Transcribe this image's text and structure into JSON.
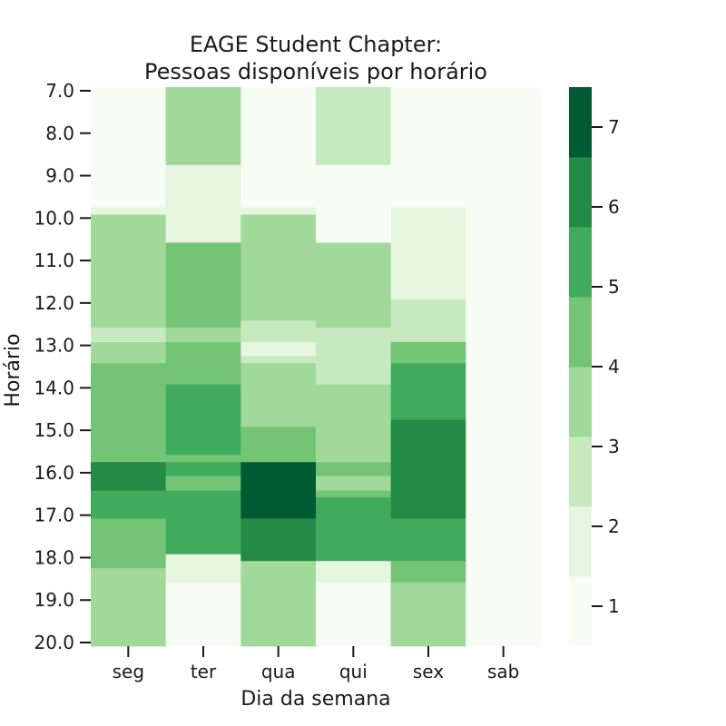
{
  "chart_data": {
    "type": "heatmap",
    "title_lines": [
      "EAGE Student Chapter:",
      "Pessoas disponíveis por horário"
    ],
    "xlabel": "Dia da semana",
    "ylabel": "Horário",
    "x_categories": [
      "seg",
      "ter",
      "qua",
      "qui",
      "sex",
      "sab"
    ],
    "y_ticks": [
      "7.0",
      "8.0",
      "9.0",
      "10.0",
      "11.0",
      "12.0",
      "13.0",
      "14.0",
      "15.0",
      "16.0",
      "17.0",
      "18.0",
      "19.0",
      "20.0"
    ],
    "y_range": [
      7.0,
      20.0
    ],
    "colormap": "Greens",
    "value_range": [
      0.5,
      7.5
    ],
    "colorbar_ticks": [
      1,
      2,
      3,
      4,
      5,
      6,
      7
    ],
    "palette": [
      "#f7fcf5",
      "#e5f5e0",
      "#c7e9c0",
      "#a1d99b",
      "#74c476",
      "#41ab5d",
      "#238b45",
      "#005a32"
    ],
    "series": [
      {
        "name": "seg",
        "blocks": [
          {
            "from": 7.0,
            "to": 9.75,
            "value": 1
          },
          {
            "from": 9.75,
            "to": 9.92,
            "value": 2
          },
          {
            "from": 9.92,
            "to": 12.58,
            "value": 4
          },
          {
            "from": 12.58,
            "to": 12.92,
            "value": 3
          },
          {
            "from": 12.92,
            "to": 13.42,
            "value": 4
          },
          {
            "from": 13.42,
            "to": 15.75,
            "value": 5
          },
          {
            "from": 15.75,
            "to": 16.42,
            "value": 7
          },
          {
            "from": 16.42,
            "to": 17.08,
            "value": 6
          },
          {
            "from": 17.08,
            "to": 18.25,
            "value": 5
          },
          {
            "from": 18.25,
            "to": 20.0,
            "value": 4
          }
        ]
      },
      {
        "name": "ter",
        "blocks": [
          {
            "from": 7.0,
            "to": 8.75,
            "value": 4
          },
          {
            "from": 8.75,
            "to": 10.58,
            "value": 2
          },
          {
            "from": 10.58,
            "to": 12.58,
            "value": 5
          },
          {
            "from": 12.58,
            "to": 12.92,
            "value": 4
          },
          {
            "from": 12.92,
            "to": 13.92,
            "value": 5
          },
          {
            "from": 13.92,
            "to": 15.58,
            "value": 6
          },
          {
            "from": 15.58,
            "to": 15.75,
            "value": 5
          },
          {
            "from": 15.75,
            "to": 16.08,
            "value": 6
          },
          {
            "from": 16.08,
            "to": 16.42,
            "value": 5
          },
          {
            "from": 16.42,
            "to": 17.92,
            "value": 6
          },
          {
            "from": 17.92,
            "to": 18.58,
            "value": 2
          },
          {
            "from": 18.58,
            "to": 20.0,
            "value": 1
          }
        ]
      },
      {
        "name": "qua",
        "blocks": [
          {
            "from": 7.0,
            "to": 9.75,
            "value": 1
          },
          {
            "from": 9.75,
            "to": 9.92,
            "value": 2
          },
          {
            "from": 9.92,
            "to": 12.42,
            "value": 4
          },
          {
            "from": 12.42,
            "to": 12.92,
            "value": 3
          },
          {
            "from": 12.92,
            "to": 13.25,
            "value": 2
          },
          {
            "from": 13.25,
            "to": 13.42,
            "value": 3
          },
          {
            "from": 13.42,
            "to": 14.92,
            "value": 4
          },
          {
            "from": 14.92,
            "to": 15.75,
            "value": 5
          },
          {
            "from": 15.75,
            "to": 17.08,
            "value": 8
          },
          {
            "from": 17.08,
            "to": 18.08,
            "value": 7
          },
          {
            "from": 18.08,
            "to": 20.0,
            "value": 4
          }
        ]
      },
      {
        "name": "qui",
        "blocks": [
          {
            "from": 7.0,
            "to": 8.75,
            "value": 3
          },
          {
            "from": 8.75,
            "to": 10.58,
            "value": 1
          },
          {
            "from": 10.58,
            "to": 12.58,
            "value": 4
          },
          {
            "from": 12.58,
            "to": 13.92,
            "value": 3
          },
          {
            "from": 13.92,
            "to": 15.75,
            "value": 4
          },
          {
            "from": 15.75,
            "to": 16.08,
            "value": 5
          },
          {
            "from": 16.08,
            "to": 16.42,
            "value": 4
          },
          {
            "from": 16.42,
            "to": 16.58,
            "value": 5
          },
          {
            "from": 16.58,
            "to": 18.08,
            "value": 6
          },
          {
            "from": 18.08,
            "to": 18.58,
            "value": 2
          },
          {
            "from": 18.58,
            "to": 20.0,
            "value": 1
          }
        ]
      },
      {
        "name": "sex",
        "blocks": [
          {
            "from": 7.0,
            "to": 9.75,
            "value": 1
          },
          {
            "from": 9.75,
            "to": 11.92,
            "value": 2
          },
          {
            "from": 11.92,
            "to": 12.92,
            "value": 3
          },
          {
            "from": 12.92,
            "to": 13.42,
            "value": 5
          },
          {
            "from": 13.42,
            "to": 14.75,
            "value": 6
          },
          {
            "from": 14.75,
            "to": 17.08,
            "value": 7
          },
          {
            "from": 17.08,
            "to": 18.08,
            "value": 6
          },
          {
            "from": 18.08,
            "to": 18.58,
            "value": 5
          },
          {
            "from": 18.58,
            "to": 20.0,
            "value": 4
          }
        ]
      },
      {
        "name": "sab",
        "blocks": [
          {
            "from": 7.0,
            "to": 20.0,
            "value": 1
          }
        ]
      }
    ]
  }
}
